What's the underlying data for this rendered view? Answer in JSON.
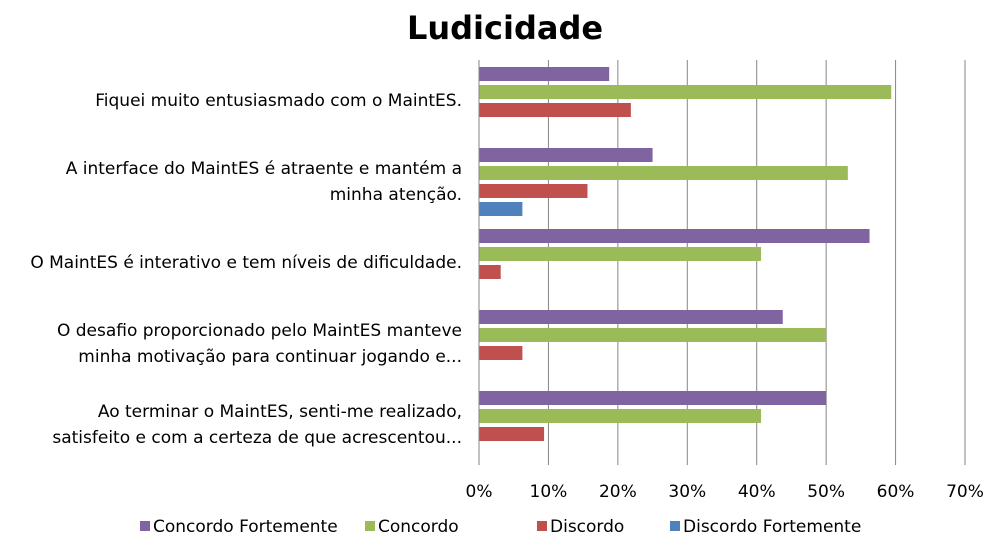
{
  "chart_data": {
    "type": "bar",
    "orientation": "horizontal",
    "title": "Ludicidade",
    "categories": [
      "Fiquei muito entusiasmado com o MaintES.",
      "A interface do MaintES é atraente e mantém a minha atenção.",
      "O MaintES é interativo e tem níveis de dificuldade.",
      "O desafio proporcionado pelo MaintES manteve minha motivação para continuar jogando e...",
      "Ao terminar o MaintES, senti-me realizado, satisfeito e com a certeza de que acrescentou..."
    ],
    "series": [
      {
        "name": "Concordo Fortemente",
        "color": "#8064a2",
        "values": [
          18.75,
          25,
          56.25,
          43.75,
          50
        ]
      },
      {
        "name": "Concordo",
        "color": "#9bbb59",
        "values": [
          59.375,
          53.125,
          40.625,
          50,
          40.625
        ]
      },
      {
        "name": "Discordo",
        "color": "#c0504d",
        "values": [
          21.875,
          15.625,
          3.125,
          6.25,
          9.375
        ]
      },
      {
        "name": "Discordo Fortemente",
        "color": "#4f81bd",
        "values": [
          0,
          6.25,
          0,
          0,
          0
        ]
      }
    ],
    "xlim": [
      0,
      70
    ],
    "xticks": [
      {
        "value": 0,
        "label": "0%"
      },
      {
        "value": 10,
        "label": "10%"
      },
      {
        "value": 20,
        "label": "20%"
      },
      {
        "value": 30,
        "label": "30%"
      },
      {
        "value": 40,
        "label": "40%"
      },
      {
        "value": 50,
        "label": "50%"
      },
      {
        "value": 60,
        "label": "60%"
      },
      {
        "value": 70,
        "label": "70%"
      }
    ],
    "grid": true,
    "legend": "bottom"
  }
}
